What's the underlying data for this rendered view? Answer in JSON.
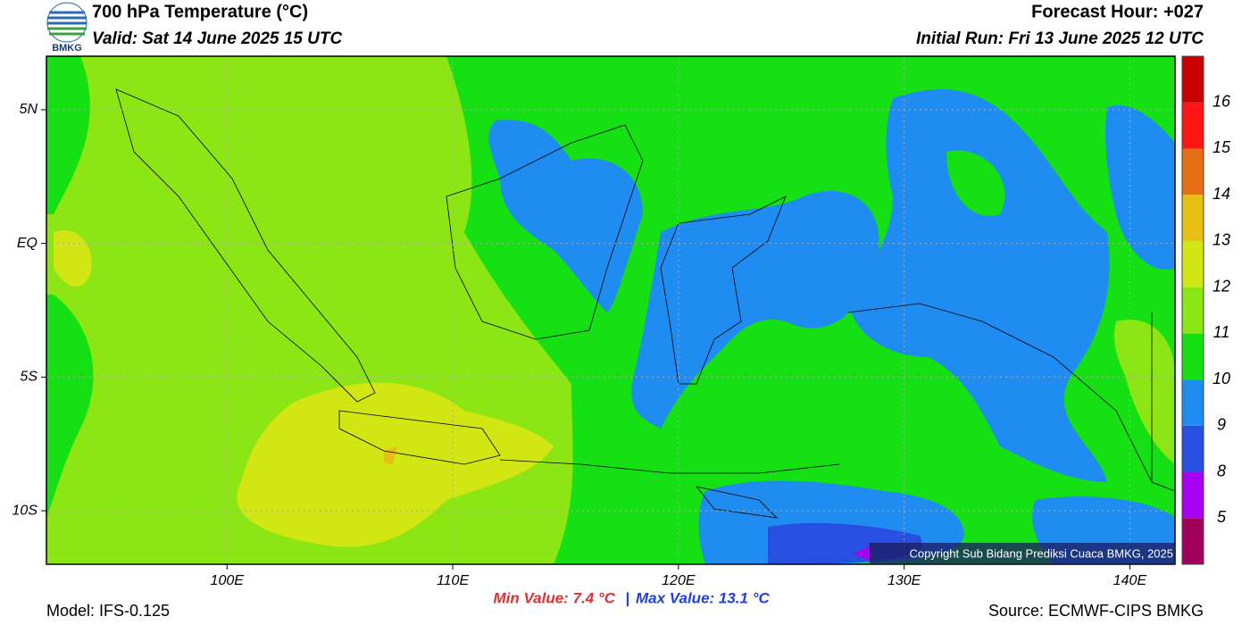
{
  "header": {
    "title": "700 hPa Temperature (°C)",
    "valid": "Valid: Sat 14 June 2025 15 UTC",
    "forecast_hour": "Forecast Hour: +027",
    "initial_run": "Initial Run: Fri 13 June 2025 12 UTC",
    "logo": "BMKG"
  },
  "map": {
    "lonlim": [
      92,
      142
    ],
    "latlim": [
      -12,
      7
    ],
    "lonticks": [
      {
        "value": 100,
        "label": "100E"
      },
      {
        "value": 110,
        "label": "110E"
      },
      {
        "value": 120,
        "label": "120E"
      },
      {
        "value": 130,
        "label": "130E"
      },
      {
        "value": 140,
        "label": "140E"
      }
    ],
    "latticks": [
      {
        "value": 5,
        "label": "5N"
      },
      {
        "value": 0,
        "label": "EQ"
      },
      {
        "value": -5,
        "label": "5S"
      },
      {
        "value": -10,
        "label": "10S"
      }
    ],
    "copyright": "Copyright Sub Bidang Prediksi Cuaca BMKG, 2025"
  },
  "colorbar": {
    "colors": [
      "#a0005a",
      "#a800f0",
      "#2850e0",
      "#1e8cf0",
      "#14e014",
      "#8ce614",
      "#d2e614",
      "#e6be14",
      "#e66e14",
      "#ff1414",
      "#c80000"
    ],
    "labels": [
      5,
      8,
      9,
      10,
      11,
      12,
      13,
      14,
      15,
      16
    ]
  },
  "footer": {
    "min_value": "Min Value: 7.4 °C",
    "separator": "|",
    "max_value": "Max Value: 13.1 °C",
    "model": "Model: IFS-0.125",
    "source": "Source: ECMWF-CIPS BMKG"
  }
}
